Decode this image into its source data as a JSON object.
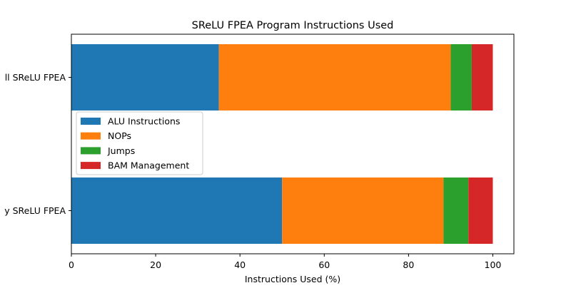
{
  "chart_data": {
    "type": "bar",
    "orientation": "horizontal",
    "stacked": true,
    "title": "SReLU FPEA Program Instructions Used",
    "xlabel": "Instructions Used (%)",
    "ylabel": "",
    "xlim": [
      0,
      105
    ],
    "xticks": [
      0,
      20,
      40,
      60,
      80,
      100
    ],
    "categories": [
      "ll SReLU FPEA",
      "y SReLU FPEA"
    ],
    "series": [
      {
        "name": "ALU Instructions",
        "color": "#1f77b4",
        "values": [
          35.0,
          50.0
        ]
      },
      {
        "name": "NOPs",
        "color": "#ff7f0e",
        "values": [
          55.0,
          38.3
        ]
      },
      {
        "name": "Jumps",
        "color": "#2ca02c",
        "values": [
          5.0,
          5.9
        ]
      },
      {
        "name": "BAM Management",
        "color": "#d62728",
        "values": [
          5.0,
          5.8
        ]
      }
    ],
    "legend_position": "center-left",
    "grid": false
  }
}
